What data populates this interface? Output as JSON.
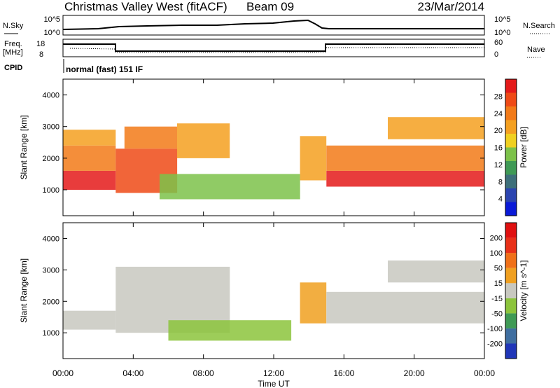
{
  "header": {
    "station": "Christmas Valley West (fitACF)",
    "beam": "Beam 09",
    "date": "23/Mar/2014"
  },
  "mini_panels": {
    "nsky_label": "N.Sky",
    "nsky_ticks": [
      "10^5",
      "10^0"
    ],
    "nsearch_label": "N.Search",
    "nsearch_ticks": [
      "10^5",
      "10^0"
    ],
    "freq_label_1": "Freq.",
    "freq_label_2": "[MHz]",
    "freq_ticks": [
      "18",
      "8"
    ],
    "nave_label": "Nave",
    "nave_ticks": [
      "60",
      "0"
    ],
    "cpid_label": "CPID",
    "cpid_text": "normal (fast) 151 IF"
  },
  "chart_data": [
    {
      "type": "heatmap",
      "title": "",
      "ylabel": "Slant Range [km]",
      "xlabel": "Time UT",
      "xlim": [
        0,
        24
      ],
      "ylim": [
        180,
        4500
      ],
      "x_ticks": [
        "00:00",
        "04:00",
        "08:00",
        "12:00",
        "16:00",
        "20:00",
        "00:00"
      ],
      "y_ticks": [
        "1000",
        "2000",
        "3000",
        "4000"
      ],
      "colorbar": {
        "label": "Power [dB]",
        "ticks": [
          "4",
          "8",
          "12",
          "16",
          "20",
          "24",
          "28"
        ],
        "range": [
          0,
          30
        ],
        "colors": [
          "#0a1ad8",
          "#2b44b0",
          "#3d6f7a",
          "#3f9a55",
          "#7cc24a",
          "#f0d020",
          "#f4a020",
          "#f27a18",
          "#ef4a16",
          "#e41a1a"
        ]
      },
      "bands": [
        {
          "t": [
            0.0,
            3.0
          ],
          "r": [
            1000,
            1600
          ],
          "level": 28
        },
        {
          "t": [
            0.0,
            3.0
          ],
          "r": [
            1600,
            2400
          ],
          "level": 23
        },
        {
          "t": [
            0.0,
            3.0
          ],
          "r": [
            2400,
            2900
          ],
          "level": 20
        },
        {
          "t": [
            3.0,
            6.5
          ],
          "r": [
            900,
            2300
          ],
          "level": 25
        },
        {
          "t": [
            3.5,
            6.5
          ],
          "r": [
            2300,
            3000
          ],
          "level": 22
        },
        {
          "t": [
            6.5,
            9.5
          ],
          "r": [
            2000,
            3100
          ],
          "level": 20
        },
        {
          "t": [
            5.5,
            13.5
          ],
          "r": [
            700,
            1500
          ],
          "level": 12
        },
        {
          "t": [
            13.5,
            15.0
          ],
          "r": [
            1300,
            2700
          ],
          "level": 18
        },
        {
          "t": [
            15.0,
            24.0
          ],
          "r": [
            1100,
            1600
          ],
          "level": 28
        },
        {
          "t": [
            15.0,
            24.0
          ],
          "r": [
            1600,
            2400
          ],
          "level": 22
        },
        {
          "t": [
            18.5,
            24.0
          ],
          "r": [
            2600,
            3300
          ],
          "level": 18
        }
      ]
    },
    {
      "type": "heatmap",
      "title": "",
      "ylabel": "Slant Range [km]",
      "xlabel": "Time UT",
      "xlim": [
        0,
        24
      ],
      "ylim": [
        180,
        4500
      ],
      "x_ticks": [
        "00:00",
        "04:00",
        "08:00",
        "12:00",
        "16:00",
        "20:00",
        "00:00"
      ],
      "y_ticks": [
        "1000",
        "2000",
        "3000",
        "4000"
      ],
      "colorbar": {
        "label": "Velocity [m s^-1]",
        "ticks": [
          "200",
          "100",
          "50",
          "15",
          "-15",
          "-50",
          "-100",
          "-200"
        ],
        "range": [
          -250,
          250
        ],
        "colors": [
          "#2036b8",
          "#3f6ea0",
          "#3f9a55",
          "#8cc43c",
          "#c8c8c0",
          "#f0a020",
          "#f07018",
          "#e83018",
          "#e01010"
        ]
      },
      "bands": [
        {
          "t": [
            0.0,
            3.0
          ],
          "r": [
            1100,
            1700
          ],
          "level": 0
        },
        {
          "t": [
            3.0,
            9.5
          ],
          "r": [
            1000,
            3100
          ],
          "level": -20
        },
        {
          "t": [
            6.0,
            13.0
          ],
          "r": [
            750,
            1400
          ],
          "level": -60
        },
        {
          "t": [
            13.5,
            15.0
          ],
          "r": [
            1300,
            2600
          ],
          "level": 40
        },
        {
          "t": [
            15.0,
            24.0
          ],
          "r": [
            1300,
            2300
          ],
          "level": 0
        },
        {
          "t": [
            18.5,
            24.0
          ],
          "r": [
            2600,
            3300
          ],
          "level": 0
        }
      ]
    }
  ]
}
